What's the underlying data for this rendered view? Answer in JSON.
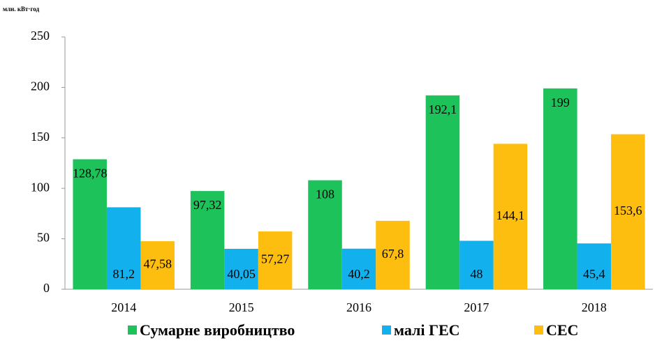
{
  "chart_data": {
    "type": "bar",
    "y_label": "млн. кВт·год",
    "categories": [
      "2014",
      "2015",
      "2016",
      "2017",
      "2018"
    ],
    "series": [
      {
        "name": "Сумарне виробництво",
        "color": "#1ec25a",
        "values": [
          128.78,
          97.32,
          108,
          192.1,
          199
        ],
        "value_labels": [
          "128,78",
          "97,32",
          "108",
          "192,1",
          "199"
        ]
      },
      {
        "name": "малі ГЕС",
        "color": "#12b0ec",
        "values": [
          81.2,
          40.05,
          40.2,
          48,
          45.4
        ],
        "value_labels": [
          "81,2",
          "40,05",
          "40,2",
          "48",
          "45,4"
        ]
      },
      {
        "name": "СЕС",
        "color": "#fdbe0f",
        "values": [
          47.58,
          57.27,
          67.8,
          144.1,
          153.6
        ],
        "value_labels": [
          "47,58",
          "57,27",
          "67,8",
          "144,1",
          "153,6"
        ]
      }
    ],
    "ylim": [
      0,
      250
    ],
    "yticks": [
      0,
      50,
      100,
      150,
      200,
      250
    ],
    "grid": false,
    "legend": "bottom"
  }
}
